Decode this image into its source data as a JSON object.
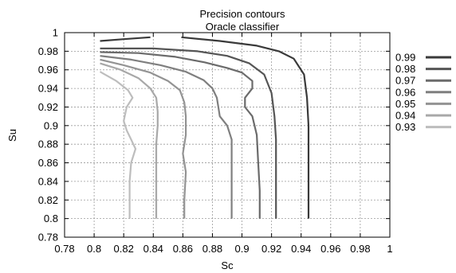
{
  "chart_data": {
    "type": "line",
    "title": "Precision contours",
    "subtitle": "Oracle classifier",
    "xlabel": "Sc",
    "ylabel": "Su",
    "xlim": [
      0.78,
      1.0
    ],
    "ylim": [
      0.78,
      1.0
    ],
    "xticks": [
      "0.78",
      "0.8",
      "0.82",
      "0.84",
      "0.86",
      "0.88",
      "0.9",
      "0.92",
      "0.94",
      "0.96",
      "0.98",
      "1"
    ],
    "yticks": [
      "0.78",
      "0.8",
      "0.82",
      "0.84",
      "0.86",
      "0.88",
      "0.9",
      "0.92",
      "0.94",
      "0.96",
      "0.98",
      "1"
    ],
    "grid": true,
    "legend": "right",
    "series": [
      {
        "name": "0.99",
        "color": "#3a3a3a",
        "segments": [
          [
            [
              0.804,
              0.991
            ],
            [
              0.82,
              0.993
            ],
            [
              0.838,
              0.995
            ]
          ],
          [
            [
              0.859,
              0.995
            ],
            [
              0.885,
              0.991
            ],
            [
              0.91,
              0.986
            ],
            [
              0.925,
              0.98
            ],
            [
              0.935,
              0.972
            ],
            [
              0.942,
              0.955
            ],
            [
              0.944,
              0.93
            ],
            [
              0.945,
              0.9
            ],
            [
              0.945,
              0.86
            ],
            [
              0.945,
              0.8
            ]
          ]
        ]
      },
      {
        "name": "0.98",
        "color": "#555555",
        "segments": [
          [
            [
              0.804,
              0.983
            ],
            [
              0.84,
              0.983
            ],
            [
              0.87,
              0.98
            ],
            [
              0.89,
              0.975
            ],
            [
              0.905,
              0.967
            ],
            [
              0.915,
              0.955
            ],
            [
              0.92,
              0.935
            ],
            [
              0.922,
              0.91
            ],
            [
              0.923,
              0.885
            ],
            [
              0.923,
              0.85
            ],
            [
              0.923,
              0.8
            ]
          ]
        ]
      },
      {
        "name": "0.97",
        "color": "#6b6b6b",
        "segments": [
          [
            [
              0.804,
              0.979
            ],
            [
              0.83,
              0.978
            ],
            [
              0.855,
              0.974
            ],
            [
              0.875,
              0.968
            ],
            [
              0.89,
              0.962
            ],
            [
              0.9,
              0.957
            ],
            [
              0.907,
              0.948
            ],
            [
              0.907,
              0.94
            ],
            [
              0.902,
              0.93
            ],
            [
              0.902,
              0.92
            ],
            [
              0.907,
              0.91
            ],
            [
              0.91,
              0.89
            ],
            [
              0.911,
              0.86
            ],
            [
              0.912,
              0.83
            ],
            [
              0.912,
              0.8
            ]
          ]
        ]
      },
      {
        "name": "0.96",
        "color": "#7f7f7f",
        "segments": [
          [
            [
              0.804,
              0.975
            ],
            [
              0.825,
              0.971
            ],
            [
              0.845,
              0.965
            ],
            [
              0.862,
              0.958
            ],
            [
              0.874,
              0.949
            ],
            [
              0.88,
              0.94
            ],
            [
              0.883,
              0.93
            ],
            [
              0.884,
              0.92
            ],
            [
              0.885,
              0.91
            ],
            [
              0.89,
              0.9
            ],
            [
              0.893,
              0.885
            ],
            [
              0.893,
              0.86
            ],
            [
              0.893,
              0.83
            ],
            [
              0.893,
              0.8
            ]
          ]
        ]
      },
      {
        "name": "0.95",
        "color": "#939393",
        "segments": [
          [
            [
              0.804,
              0.971
            ],
            [
              0.82,
              0.965
            ],
            [
              0.838,
              0.957
            ],
            [
              0.85,
              0.948
            ],
            [
              0.858,
              0.938
            ],
            [
              0.861,
              0.925
            ],
            [
              0.862,
              0.91
            ],
            [
              0.862,
              0.89
            ],
            [
              0.86,
              0.87
            ],
            [
              0.862,
              0.85
            ],
            [
              0.861,
              0.82
            ],
            [
              0.861,
              0.8
            ]
          ]
        ]
      },
      {
        "name": "0.94",
        "color": "#a8a8a8",
        "segments": [
          [
            [
              0.804,
              0.967
            ],
            [
              0.818,
              0.96
            ],
            [
              0.83,
              0.951
            ],
            [
              0.838,
              0.94
            ],
            [
              0.842,
              0.93
            ],
            [
              0.843,
              0.915
            ],
            [
              0.843,
              0.9
            ],
            [
              0.842,
              0.88
            ],
            [
              0.842,
              0.86
            ],
            [
              0.842,
              0.83
            ],
            [
              0.842,
              0.8
            ]
          ]
        ]
      },
      {
        "name": "0.93",
        "color": "#bdbdbd",
        "segments": [
          [
            [
              0.804,
              0.958
            ],
            [
              0.815,
              0.948
            ],
            [
              0.823,
              0.938
            ],
            [
              0.826,
              0.93
            ],
            [
              0.822,
              0.92
            ],
            [
              0.82,
              0.905
            ],
            [
              0.822,
              0.895
            ],
            [
              0.825,
              0.885
            ],
            [
              0.828,
              0.875
            ],
            [
              0.825,
              0.86
            ],
            [
              0.824,
              0.84
            ],
            [
              0.824,
              0.82
            ],
            [
              0.824,
              0.8
            ]
          ]
        ]
      }
    ]
  }
}
